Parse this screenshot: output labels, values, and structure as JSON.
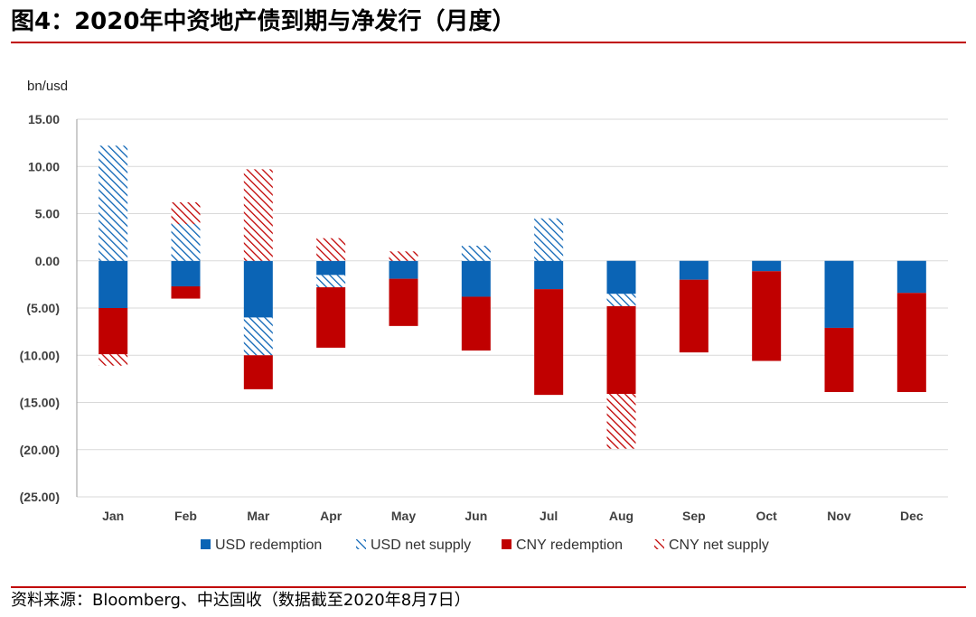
{
  "header": {
    "title": "图4：2020年中资地产债到期与净发行（月度）"
  },
  "footer": {
    "source": "资料来源：Bloomberg、中达固收（数据截至2020年8月7日）"
  },
  "colors": {
    "usd": "#0b64b5",
    "cny": "#c00000",
    "rule": "#c00000"
  },
  "chart_data": {
    "type": "bar",
    "stacked": true,
    "unit_label": "bn/usd",
    "categories": [
      "Jan",
      "Feb",
      "Mar",
      "Apr",
      "May",
      "Jun",
      "Jul",
      "Aug",
      "Sep",
      "Oct",
      "Nov",
      "Dec"
    ],
    "series": [
      {
        "name": "USD redemption",
        "color": "#0b64b5",
        "pattern": "solid",
        "values": [
          -5.0,
          -2.7,
          -6.0,
          -1.5,
          -1.9,
          -3.8,
          -3.0,
          -3.5,
          -2.0,
          -1.1,
          -7.1,
          -3.4
        ]
      },
      {
        "name": "USD net supply",
        "color": "#0b64b5",
        "pattern": "hatched",
        "values": [
          12.2,
          3.9,
          -4.0,
          -1.3,
          0,
          1.6,
          4.5,
          -1.3,
          0,
          0,
          0,
          0
        ]
      },
      {
        "name": "CNY redemption",
        "color": "#c00000",
        "pattern": "solid",
        "values": [
          -4.9,
          -1.3,
          -3.6,
          -6.4,
          -5.0,
          -5.7,
          -11.2,
          -9.3,
          -7.7,
          -9.5,
          -6.8,
          -10.5
        ]
      },
      {
        "name": "CNY net supply",
        "color": "#c00000",
        "pattern": "hatched",
        "values": [
          -1.2,
          2.3,
          9.7,
          2.4,
          1.0,
          0,
          0,
          -5.8,
          0,
          0,
          0,
          0
        ]
      }
    ],
    "y_ticks": [
      "15.00",
      "10.00",
      "5.00",
      "0.00",
      "(5.00)",
      "(10.00)",
      "(15.00)",
      "(20.00)",
      "(25.00)"
    ],
    "ylim": [
      -25,
      15
    ],
    "grid": true,
    "legend_position": "bottom"
  }
}
